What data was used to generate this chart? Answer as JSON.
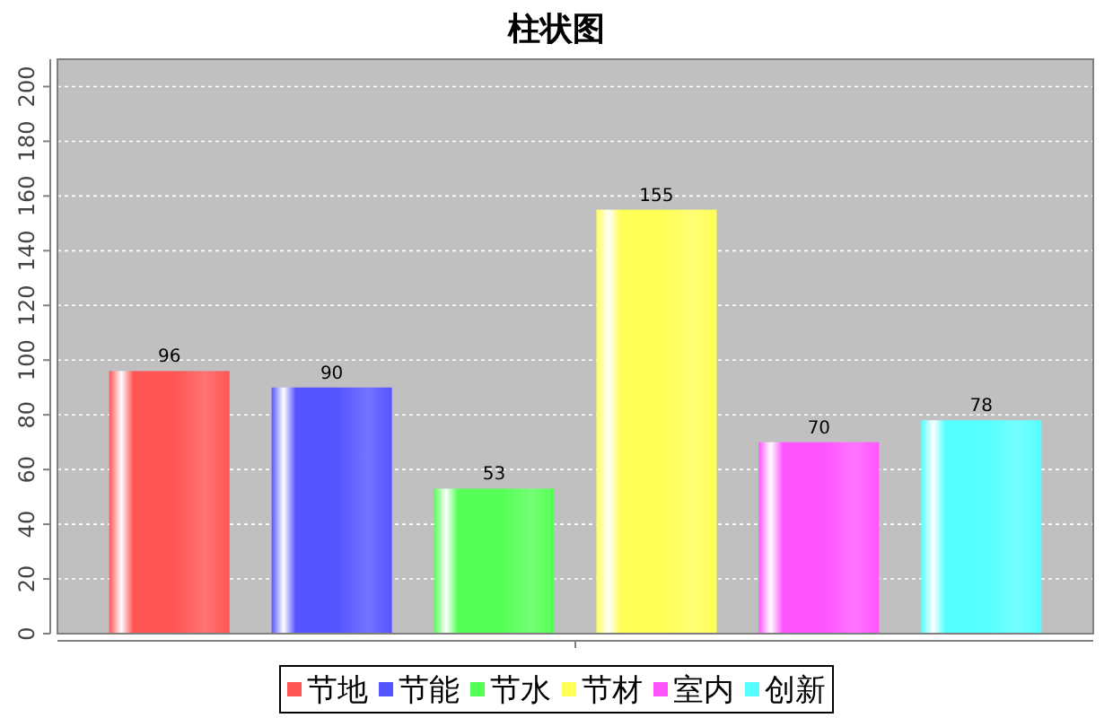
{
  "chart_data": {
    "type": "bar",
    "title": "柱状图",
    "categories": [
      null
    ],
    "series": [
      {
        "name": "节地",
        "color": "#ff5555",
        "values": [
          96
        ]
      },
      {
        "name": "节能",
        "color": "#5555ff",
        "values": [
          90
        ]
      },
      {
        "name": "节水",
        "color": "#55ff55",
        "values": [
          53
        ]
      },
      {
        "name": "节材",
        "color": "#ffff55",
        "values": [
          155
        ]
      },
      {
        "name": "室内",
        "color": "#ff55ff",
        "values": [
          70
        ]
      },
      {
        "name": "创新",
        "color": "#55ffff",
        "values": [
          78
        ]
      }
    ],
    "ylim": [
      0,
      210
    ],
    "yticks": [
      0,
      20,
      40,
      60,
      80,
      100,
      120,
      140,
      160,
      180,
      200
    ],
    "tick_labels": "y",
    "grid": "y",
    "legend": "bottom",
    "data_labels": true
  }
}
